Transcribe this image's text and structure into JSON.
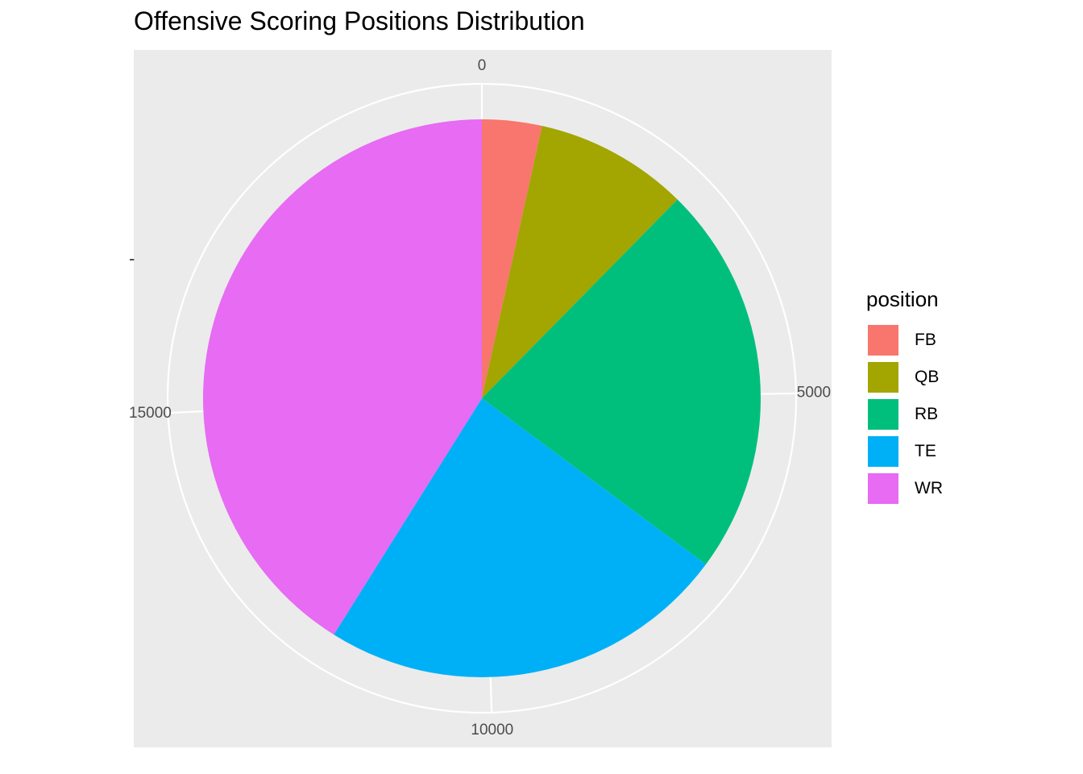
{
  "chart_data": {
    "type": "pie",
    "title": "Offensive Scoring Positions Distribution",
    "categories": [
      "FB",
      "QB",
      "RB",
      "TE",
      "WR"
    ],
    "values": [
      700,
      1800,
      4600,
      4800,
      8300
    ],
    "colors": [
      "#F8766D",
      "#A3A500",
      "#00BF7D",
      "#00B0F6",
      "#E76BF3"
    ],
    "theta_axis": {
      "ticks": [
        0,
        5000,
        10000,
        15000
      ],
      "tick_labels": [
        "0",
        "5000",
        "10000",
        "15000"
      ],
      "range": [
        0,
        20200
      ]
    },
    "y_axis_tick_label": "-",
    "grid": true,
    "background": "#EBEBEB",
    "legend": {
      "title": "position",
      "placement": "right"
    }
  }
}
